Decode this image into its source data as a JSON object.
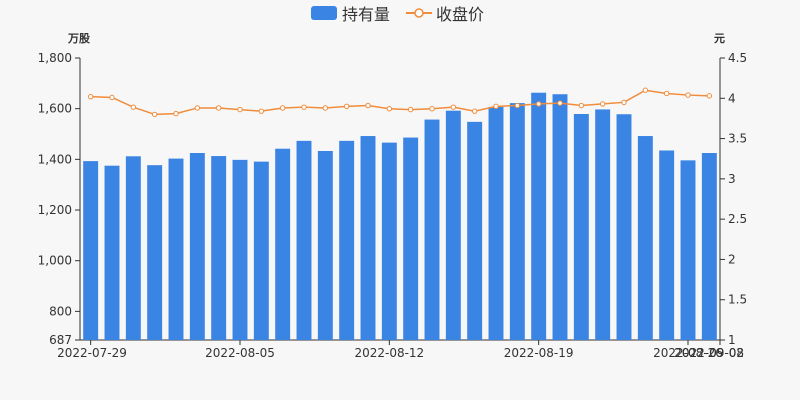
{
  "chart_data": {
    "type": "bar",
    "legend": {
      "bar_label": "持有量",
      "line_label": "收盘价",
      "placement": "top-center"
    },
    "left_unit": "万股",
    "right_unit": "元",
    "x_tick_labels": [
      "2022-07-29",
      "2022-08-05",
      "2022-08-12",
      "2022-08-19",
      "2022-08-26",
      "2022-09-02",
      "2022-09-08"
    ],
    "categories": [
      "2022-07-29",
      "2022-07-30",
      "2022-07-31",
      "2022-08-01",
      "2022-08-02",
      "2022-08-03",
      "2022-08-04",
      "2022-08-05",
      "2022-08-06",
      "2022-08-07",
      "2022-08-08",
      "2022-08-09",
      "2022-08-10",
      "2022-08-11",
      "2022-08-12",
      "2022-08-13",
      "2022-08-14",
      "2022-08-15",
      "2022-08-16",
      "2022-08-17",
      "2022-08-18",
      "2022-08-19",
      "2022-08-20",
      "2022-08-21",
      "2022-08-22",
      "2022-08-23",
      "2022-08-24",
      "2022-08-25",
      "2022-08-26",
      "2022-08-27"
    ],
    "series": [
      {
        "name": "持有量",
        "type": "bar",
        "axis": "left",
        "color": "#3a84e3",
        "values": [
          1393,
          1375,
          1412,
          1377,
          1403,
          1425,
          1413,
          1398,
          1391,
          1442,
          1473,
          1433,
          1473,
          1492,
          1466,
          1486,
          1557,
          1592,
          1548,
          1607,
          1622,
          1663,
          1657,
          1579,
          1597,
          1578,
          1492,
          1435,
          1396,
          1425
        ]
      },
      {
        "name": "收盘价",
        "type": "line",
        "axis": "right",
        "color": "#f08c3b",
        "values": [
          4.02,
          4.01,
          3.89,
          3.8,
          3.81,
          3.88,
          3.88,
          3.86,
          3.84,
          3.88,
          3.89,
          3.88,
          3.9,
          3.91,
          3.87,
          3.86,
          3.87,
          3.89,
          3.84,
          3.9,
          3.91,
          3.93,
          3.94,
          3.91,
          3.93,
          3.95,
          4.1,
          4.06,
          4.04,
          4.03
        ]
      }
    ],
    "left_axis": {
      "min": 687,
      "max": 1800,
      "ticks": [
        "687",
        "800",
        "1,000",
        "1,200",
        "1,400",
        "1,600",
        "1,800"
      ],
      "tick_values": [
        687,
        800,
        1000,
        1200,
        1400,
        1600,
        1800
      ]
    },
    "right_axis": {
      "min": 1,
      "max": 4.5,
      "ticks": [
        "1",
        "1.5",
        "2",
        "2.5",
        "3",
        "3.5",
        "4",
        "4.5"
      ],
      "tick_values": [
        1,
        1.5,
        2,
        2.5,
        3,
        3.5,
        4,
        4.5
      ]
    },
    "grid": false
  }
}
